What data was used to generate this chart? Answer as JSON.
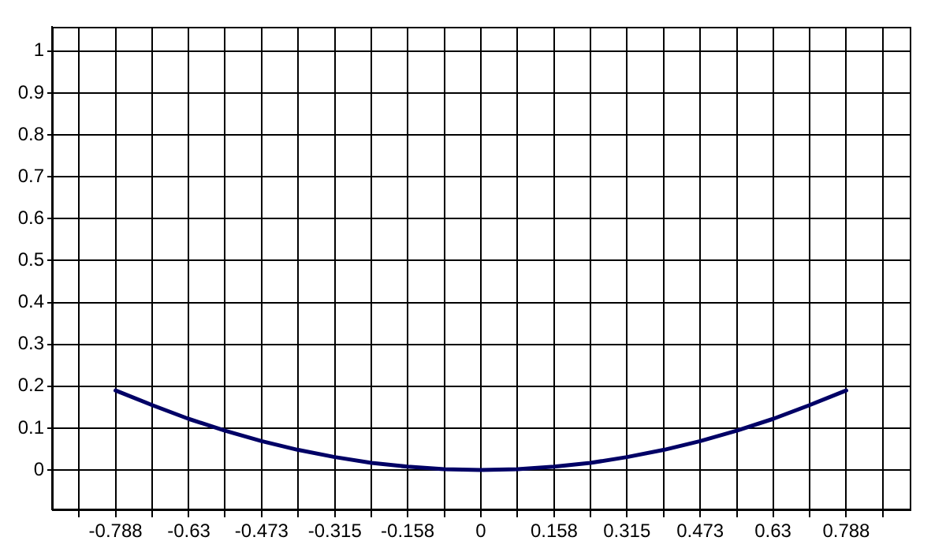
{
  "chart_data": {
    "type": "line",
    "x": [
      -0.788,
      -0.709,
      -0.63,
      -0.552,
      -0.473,
      -0.394,
      -0.315,
      -0.236,
      -0.158,
      -0.079,
      0,
      0.079,
      0.158,
      0.236,
      0.315,
      0.394,
      0.473,
      0.552,
      0.63,
      0.709,
      0.788
    ],
    "series": [
      {
        "color": "#000066",
        "values": [
          0.19,
          0.155,
          0.122,
          0.094,
          0.069,
          0.048,
          0.031,
          0.017,
          0.008,
          0.002,
          0,
          0.002,
          0.008,
          0.017,
          0.031,
          0.048,
          0.069,
          0.094,
          0.122,
          0.155,
          0.19
        ]
      }
    ],
    "xlim": [
      -0.925,
      0.925
    ],
    "xticks": [
      {
        "value": -0.867,
        "label": null
      },
      -0.788,
      {
        "value": -0.709,
        "label": null
      },
      -0.63,
      {
        "value": -0.552,
        "label": null
      },
      -0.473,
      {
        "value": -0.394,
        "label": null
      },
      -0.315,
      {
        "value": -0.236,
        "label": null
      },
      -0.158,
      {
        "value": -0.079,
        "label": null
      },
      0,
      {
        "value": 0.079,
        "label": null
      },
      0.158,
      {
        "value": 0.236,
        "label": null
      },
      0.315,
      {
        "value": 0.394,
        "label": null
      },
      0.473,
      {
        "value": 0.552,
        "label": null
      },
      0.63,
      {
        "value": 0.709,
        "label": null
      },
      0.788,
      {
        "value": 0.867,
        "label": null
      }
    ],
    "ylim": [
      -0.094,
      1.058
    ],
    "yticks": [
      0,
      0.1,
      0.2,
      0.3,
      0.4,
      0.5,
      0.6,
      0.7,
      0.8,
      0.9,
      1
    ],
    "grid": true,
    "legend": false,
    "marker": "none",
    "line_style": "solid"
  }
}
